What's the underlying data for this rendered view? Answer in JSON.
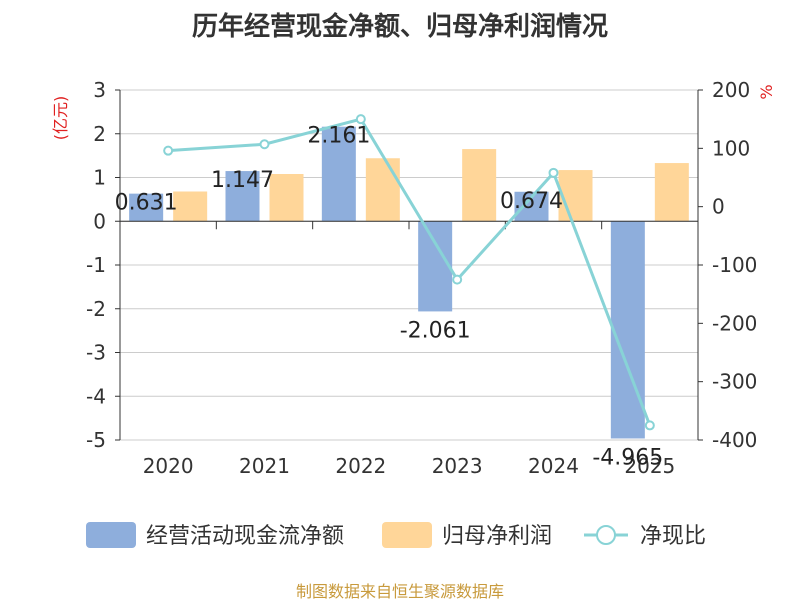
{
  "chart_data": {
    "type": "bar",
    "title": "历年经营现金净额、归母净利润情况",
    "categories": [
      "2020",
      "2021",
      "2022",
      "2023",
      "2024",
      "2025"
    ],
    "series": [
      {
        "name": "经营活动现金流净额",
        "type": "bar",
        "axis": "left",
        "color": "#8eaedc",
        "values": [
          0.631,
          1.147,
          2.161,
          -2.061,
          0.674,
          -4.965
        ],
        "labels": [
          "0.631",
          "1.147",
          "2.161",
          "-2.061",
          "0.674",
          "-4.965"
        ]
      },
      {
        "name": "归母净利润",
        "type": "bar",
        "axis": "left",
        "color": "#ffd699",
        "values": [
          0.68,
          1.08,
          1.44,
          1.65,
          1.17,
          1.33
        ]
      },
      {
        "name": "净现比",
        "type": "line",
        "axis": "right",
        "color": "#88d3d6",
        "values": [
          96,
          107,
          150,
          -125,
          58,
          -375
        ]
      }
    ],
    "ylabel_left": "(亿元)",
    "ylabel_right": "%",
    "ylim_left": [
      -5,
      3
    ],
    "yticks_left": [
      3,
      2,
      1,
      0,
      -1,
      -2,
      -3,
      -4,
      -5
    ],
    "ylim_right": [
      -400,
      200
    ],
    "yticks_right": [
      200,
      100,
      0,
      -100,
      -200,
      -300,
      -400
    ],
    "legend_position": "bottom",
    "source": "制图数据来自恒生聚源数据库"
  }
}
